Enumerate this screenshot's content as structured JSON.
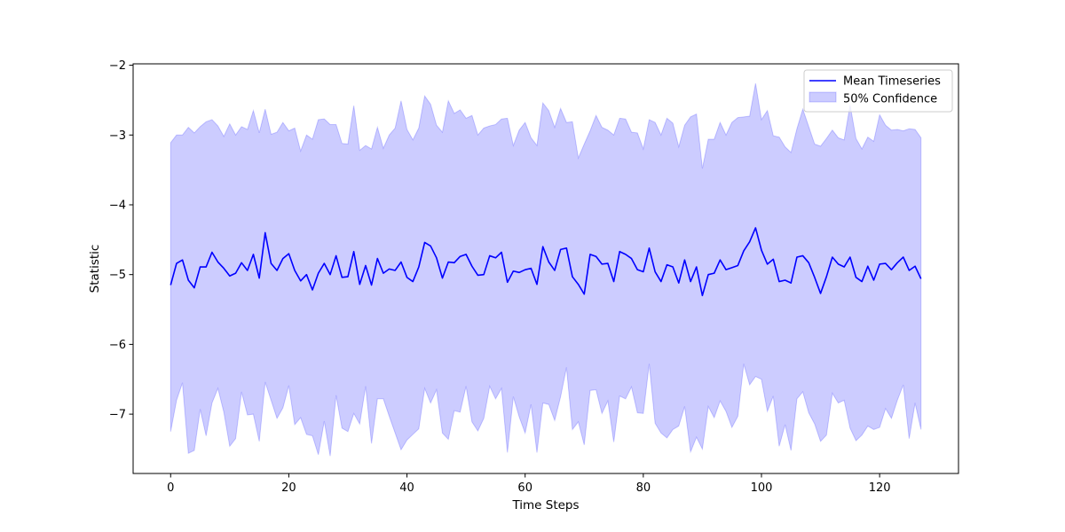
{
  "chart_data": {
    "type": "line",
    "title": "",
    "xlabel": "Time Steps",
    "ylabel": "Statistic",
    "xlim": [
      -6.35,
      133.35
    ],
    "ylim": [
      -7.85,
      -1.98
    ],
    "xticks": [
      0,
      20,
      40,
      60,
      80,
      100,
      120
    ],
    "yticks": [
      -7,
      -6,
      -5,
      -4,
      -3,
      -2
    ],
    "grid": false,
    "legend_position": "top-right",
    "series": [
      {
        "name": "Mean Timeseries",
        "type": "line",
        "color": "#0000ff",
        "x_start": 0,
        "x_step": 1,
        "values": [
          -5.15,
          -4.84,
          -4.79,
          -5.08,
          -5.19,
          -4.89,
          -4.89,
          -4.68,
          -4.82,
          -4.91,
          -5.02,
          -4.98,
          -4.83,
          -4.94,
          -4.71,
          -5.05,
          -4.4,
          -4.84,
          -4.94,
          -4.77,
          -4.7,
          -4.94,
          -5.09,
          -5.0,
          -5.22,
          -4.98,
          -4.84,
          -5.0,
          -4.73,
          -5.04,
          -5.03,
          -4.67,
          -5.14,
          -4.87,
          -5.15,
          -4.77,
          -4.98,
          -4.92,
          -4.94,
          -4.82,
          -5.04,
          -5.1,
          -4.89,
          -4.54,
          -4.59,
          -4.76,
          -5.05,
          -4.82,
          -4.83,
          -4.74,
          -4.71,
          -4.88,
          -5.01,
          -5.0,
          -4.73,
          -4.76,
          -4.68,
          -5.11,
          -4.95,
          -4.97,
          -4.93,
          -4.91,
          -5.14,
          -4.6,
          -4.82,
          -4.94,
          -4.64,
          -4.62,
          -5.03,
          -5.14,
          -5.28,
          -4.71,
          -4.74,
          -4.85,
          -4.84,
          -5.1,
          -4.67,
          -4.71,
          -4.77,
          -4.93,
          -4.96,
          -4.62,
          -4.96,
          -5.1,
          -4.86,
          -4.89,
          -5.12,
          -4.79,
          -5.1,
          -4.89,
          -5.3,
          -5.0,
          -4.98,
          -4.79,
          -4.93,
          -4.9,
          -4.87,
          -4.66,
          -4.53,
          -4.33,
          -4.65,
          -4.85,
          -4.78,
          -5.1,
          -5.08,
          -5.12,
          -4.75,
          -4.73,
          -4.83,
          -5.04,
          -5.27,
          -5.03,
          -4.75,
          -4.85,
          -4.89,
          -4.75,
          -5.04,
          -5.1,
          -4.88,
          -5.08,
          -4.85,
          -4.84,
          -4.93,
          -4.83,
          -4.75,
          -4.94,
          -4.88,
          -5.06
        ]
      },
      {
        "name": "50% Confidence",
        "type": "band",
        "color": "#0000ff",
        "alpha": 0.2,
        "x_start": 0,
        "x_step": 1,
        "upper": [
          -3.11,
          -3.0,
          -3.0,
          -2.89,
          -2.97,
          -2.88,
          -2.81,
          -2.78,
          -2.87,
          -3.02,
          -2.84,
          -3.0,
          -2.88,
          -2.92,
          -2.65,
          -2.97,
          -2.63,
          -2.99,
          -2.96,
          -2.82,
          -2.94,
          -2.9,
          -3.23,
          -3.0,
          -3.06,
          -2.78,
          -2.77,
          -2.85,
          -2.85,
          -3.12,
          -3.13,
          -2.58,
          -3.22,
          -3.15,
          -3.2,
          -2.89,
          -3.19,
          -3.0,
          -2.9,
          -2.51,
          -2.92,
          -3.07,
          -2.9,
          -2.44,
          -2.56,
          -2.86,
          -2.96,
          -2.51,
          -2.69,
          -2.64,
          -2.76,
          -2.72,
          -3.0,
          -2.9,
          -2.87,
          -2.85,
          -2.77,
          -2.76,
          -3.15,
          -2.93,
          -2.82,
          -3.04,
          -3.15,
          -2.54,
          -2.65,
          -2.89,
          -2.62,
          -2.82,
          -2.81,
          -3.33,
          -3.13,
          -2.94,
          -2.72,
          -2.89,
          -2.93,
          -3.0,
          -2.76,
          -2.77,
          -2.96,
          -2.97,
          -3.2,
          -2.78,
          -2.82,
          -3.0,
          -2.76,
          -2.83,
          -3.17,
          -2.86,
          -2.74,
          -2.7,
          -3.48,
          -3.06,
          -3.06,
          -2.82,
          -3.0,
          -2.82,
          -2.75,
          -2.74,
          -2.73,
          -2.26,
          -2.78,
          -2.65,
          -3.01,
          -3.03,
          -3.17,
          -3.25,
          -2.91,
          -2.63,
          -2.88,
          -3.13,
          -3.16,
          -3.05,
          -2.93,
          -3.04,
          -3.07,
          -2.57,
          -3.05,
          -3.2,
          -3.03,
          -3.09,
          -2.71,
          -2.86,
          -2.93,
          -2.92,
          -2.94,
          -2.91,
          -2.92,
          -3.04
        ],
        "lower": [
          -7.25,
          -6.8,
          -6.55,
          -7.56,
          -7.52,
          -6.93,
          -7.31,
          -6.84,
          -6.63,
          -6.97,
          -7.46,
          -7.35,
          -6.68,
          -7.01,
          -7.0,
          -7.39,
          -6.54,
          -6.8,
          -7.06,
          -6.91,
          -6.59,
          -7.15,
          -7.05,
          -7.29,
          -7.31,
          -7.58,
          -7.1,
          -7.6,
          -6.73,
          -7.2,
          -7.25,
          -6.99,
          -7.14,
          -6.6,
          -7.42,
          -6.78,
          -6.78,
          -7.03,
          -7.27,
          -7.51,
          -7.37,
          -7.29,
          -7.21,
          -6.63,
          -6.84,
          -6.65,
          -7.27,
          -7.36,
          -6.95,
          -6.97,
          -6.6,
          -7.11,
          -7.24,
          -7.06,
          -6.6,
          -6.78,
          -6.63,
          -7.55,
          -6.75,
          -7.04,
          -7.27,
          -6.86,
          -7.55,
          -6.84,
          -6.86,
          -7.09,
          -6.75,
          -6.33,
          -7.22,
          -7.11,
          -7.44,
          -6.66,
          -6.65,
          -6.99,
          -6.81,
          -7.4,
          -6.74,
          -6.78,
          -6.61,
          -6.98,
          -6.99,
          -6.28,
          -7.13,
          -7.27,
          -7.34,
          -7.22,
          -7.17,
          -6.89,
          -7.54,
          -7.33,
          -7.5,
          -6.89,
          -7.05,
          -6.81,
          -6.96,
          -7.19,
          -7.03,
          -6.28,
          -6.58,
          -6.46,
          -6.5,
          -6.96,
          -6.74,
          -7.46,
          -7.15,
          -7.52,
          -6.78,
          -6.68,
          -6.98,
          -7.14,
          -7.39,
          -7.3,
          -6.7,
          -6.84,
          -6.8,
          -7.2,
          -7.38,
          -7.3,
          -7.17,
          -7.22,
          -7.19,
          -6.92,
          -7.06,
          -6.8,
          -6.58,
          -7.35,
          -6.84,
          -7.22
        ]
      }
    ]
  }
}
